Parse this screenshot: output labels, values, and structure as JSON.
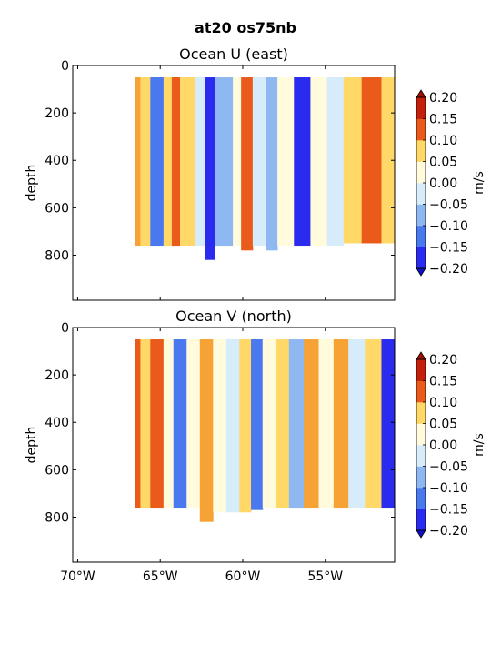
{
  "figure": {
    "suptitle": "at20 os75nb"
  },
  "colormap": {
    "levels": [
      -0.2,
      -0.15,
      -0.1,
      -0.05,
      0.0,
      0.05,
      0.1,
      0.15,
      0.2
    ],
    "colors": [
      "#2b2bf0",
      "#4a78ef",
      "#8fb8f2",
      "#d6ecfb",
      "#fffbdc",
      "#ffd868",
      "#f6a234",
      "#ea5a1a",
      "#c41f0a"
    ],
    "under_color": "#1010c8",
    "over_color": "#a01000"
  },
  "chart_data": [
    {
      "type": "heatmap",
      "title": "Ocean U (east)",
      "xlabel": "",
      "ylabel": "depth",
      "xlim": [
        -70.3,
        -50.8
      ],
      "ylim": [
        0,
        990
      ],
      "y_inverted": true,
      "xticks": [
        -70,
        -65,
        -60,
        -55
      ],
      "xtick_labels": [],
      "yticks": [
        0,
        200,
        400,
        600,
        800
      ],
      "yticks_text": [
        "0",
        "200",
        "400",
        "600",
        "800"
      ],
      "colorbar": {
        "label": "m/s",
        "ticks": [
          "0.20",
          "0.15",
          "0.10",
          "0.05",
          "0.00",
          "−0.05",
          "−0.10",
          "−0.15",
          "−0.20"
        ]
      },
      "data_extent": {
        "x": [
          -66.5,
          -50.8
        ],
        "depth_top": 50
      },
      "bands": [
        {
          "x0": -66.5,
          "x1": -66.2,
          "value": 0.1,
          "bottom": 760
        },
        {
          "x0": -66.2,
          "x1": -65.6,
          "value": 0.05,
          "bottom": 760
        },
        {
          "x0": -65.6,
          "x1": -64.8,
          "value": -0.12,
          "bottom": 760
        },
        {
          "x0": -64.8,
          "x1": -64.3,
          "value": 0.05,
          "bottom": 760
        },
        {
          "x0": -64.3,
          "x1": -63.8,
          "value": 0.18,
          "bottom": 760
        },
        {
          "x0": -63.8,
          "x1": -62.9,
          "value": 0.08,
          "bottom": 760
        },
        {
          "x0": -62.9,
          "x1": -62.3,
          "value": -0.05,
          "bottom": 760
        },
        {
          "x0": -62.3,
          "x1": -61.7,
          "value": -0.2,
          "bottom": 820
        },
        {
          "x0": -61.7,
          "x1": -60.6,
          "value": -0.07,
          "bottom": 760
        },
        {
          "x0": -60.6,
          "x1": -60.1,
          "value": 0.0,
          "bottom": 760
        },
        {
          "x0": -60.1,
          "x1": -59.4,
          "value": 0.15,
          "bottom": 780
        },
        {
          "x0": -59.4,
          "x1": -58.6,
          "value": -0.03,
          "bottom": 760
        },
        {
          "x0": -58.6,
          "x1": -57.9,
          "value": -0.09,
          "bottom": 780
        },
        {
          "x0": -57.9,
          "x1": -56.9,
          "value": 0.04,
          "bottom": 760
        },
        {
          "x0": -56.9,
          "x1": -55.9,
          "value": -0.17,
          "bottom": 760
        },
        {
          "x0": -55.9,
          "x1": -54.9,
          "value": 0.04,
          "bottom": 760
        },
        {
          "x0": -54.9,
          "x1": -53.9,
          "value": -0.05,
          "bottom": 760
        },
        {
          "x0": -53.9,
          "x1": -52.8,
          "value": 0.07,
          "bottom": 750
        },
        {
          "x0": -52.8,
          "x1": -51.6,
          "value": 0.18,
          "bottom": 750
        },
        {
          "x0": -51.6,
          "x1": -50.8,
          "value": 0.09,
          "bottom": 750
        }
      ]
    },
    {
      "type": "heatmap",
      "title": "Ocean V (north)",
      "xlabel": "",
      "ylabel": "depth",
      "xlim": [
        -70.3,
        -50.8
      ],
      "ylim": [
        0,
        990
      ],
      "y_inverted": true,
      "xticks": [
        -70,
        -65,
        -60,
        -55
      ],
      "xtick_labels": [
        "70°W",
        "65°W",
        "60°W",
        "55°W"
      ],
      "yticks": [
        0,
        200,
        400,
        600,
        800
      ],
      "yticks_text": [
        "0",
        "200",
        "400",
        "600",
        "800"
      ],
      "colorbar": {
        "label": "m/s",
        "ticks": [
          "0.20",
          "0.15",
          "0.10",
          "0.05",
          "0.00",
          "−0.05",
          "−0.10",
          "−0.15",
          "−0.20"
        ]
      },
      "data_extent": {
        "x": [
          -66.5,
          -50.8
        ],
        "depth_top": 50
      },
      "bands": [
        {
          "x0": -66.5,
          "x1": -66.2,
          "value": 0.17,
          "bottom": 760
        },
        {
          "x0": -66.2,
          "x1": -65.6,
          "value": 0.05,
          "bottom": 760
        },
        {
          "x0": -65.6,
          "x1": -64.8,
          "value": 0.18,
          "bottom": 760
        },
        {
          "x0": -64.8,
          "x1": -64.2,
          "value": 0.02,
          "bottom": 760
        },
        {
          "x0": -64.2,
          "x1": -63.4,
          "value": -0.15,
          "bottom": 760
        },
        {
          "x0": -63.4,
          "x1": -62.6,
          "value": 0.03,
          "bottom": 760
        },
        {
          "x0": -62.6,
          "x1": -61.8,
          "value": 0.1,
          "bottom": 820
        },
        {
          "x0": -61.8,
          "x1": -61.0,
          "value": 0.0,
          "bottom": 780
        },
        {
          "x0": -61.0,
          "x1": -60.2,
          "value": -0.05,
          "bottom": 780
        },
        {
          "x0": -60.2,
          "x1": -59.5,
          "value": 0.05,
          "bottom": 780
        },
        {
          "x0": -59.5,
          "x1": -58.8,
          "value": -0.15,
          "bottom": 770
        },
        {
          "x0": -58.8,
          "x1": -58.0,
          "value": 0.02,
          "bottom": 760
        },
        {
          "x0": -58.0,
          "x1": -57.2,
          "value": 0.05,
          "bottom": 760
        },
        {
          "x0": -57.2,
          "x1": -56.3,
          "value": -0.06,
          "bottom": 760
        },
        {
          "x0": -56.3,
          "x1": -55.4,
          "value": 0.13,
          "bottom": 760
        },
        {
          "x0": -55.4,
          "x1": -54.5,
          "value": 0.02,
          "bottom": 760
        },
        {
          "x0": -54.5,
          "x1": -53.6,
          "value": 0.12,
          "bottom": 760
        },
        {
          "x0": -53.6,
          "x1": -52.6,
          "value": -0.05,
          "bottom": 760
        },
        {
          "x0": -52.6,
          "x1": -51.6,
          "value": 0.05,
          "bottom": 760
        },
        {
          "x0": -51.6,
          "x1": -50.8,
          "value": -0.18,
          "bottom": 760
        }
      ]
    }
  ]
}
